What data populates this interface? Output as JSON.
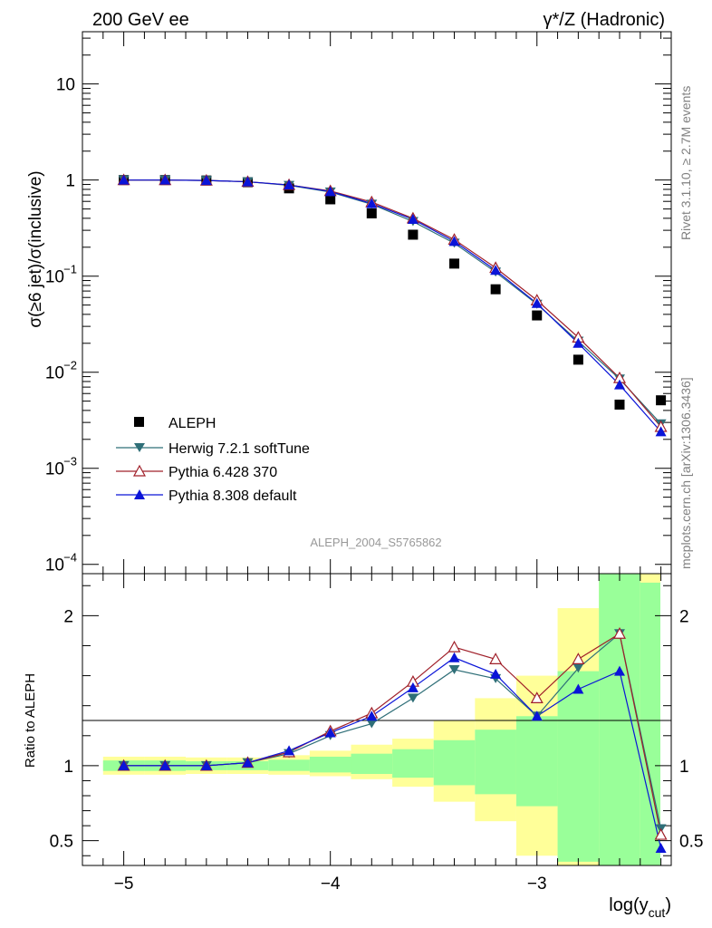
{
  "header": {
    "left_title": "200 GeV ee",
    "right_title": "γ*/Z (Hadronic)"
  },
  "side_labels": {
    "rivet": "Rivet 3.1.10, ≥ 2.7M events",
    "mcplots": "mcplots.cern.ch [arXiv:1306.3436]"
  },
  "analysis_id": "ALEPH_2004_S5765862",
  "colors": {
    "aleph": "#000000",
    "herwig": "#2f6f78",
    "pythia6": "#a0202a",
    "pythia8": "#0a14d8",
    "band_yellow": "#ffff99",
    "band_green": "#99ff99"
  },
  "chart_data": [
    {
      "type": "scatter",
      "panel": "main",
      "ylabel": "σ(≥6 jet)/σ(inclusive)",
      "yscale": "log",
      "ylim": [
        8e-05,
        35
      ],
      "xlim": [
        -5.2,
        -2.35
      ],
      "y_ticks": [
        {
          "value": 0.0001,
          "base": "10",
          "exp": "−4"
        },
        {
          "value": 0.001,
          "base": "10",
          "exp": "−3"
        },
        {
          "value": 0.01,
          "base": "10",
          "exp": "−2"
        },
        {
          "value": 0.1,
          "base": "10",
          "exp": "−1"
        },
        {
          "value": 1,
          "base": "1",
          "exp": ""
        },
        {
          "value": 10,
          "base": "10",
          "exp": ""
        }
      ],
      "x": [
        -5.0,
        -4.8,
        -4.6,
        -4.4,
        -4.2,
        -4.0,
        -3.8,
        -3.6,
        -3.4,
        -3.2,
        -3.0,
        -2.8,
        -2.6,
        -2.4
      ],
      "series": [
        {
          "name": "ALEPH",
          "key": "aleph",
          "marker": "square",
          "values": [
            1.0,
            1.0,
            0.99,
            0.95,
            0.82,
            0.63,
            0.45,
            0.27,
            0.135,
            0.073,
            0.039,
            0.0135,
            0.0046,
            0.0051
          ]
        },
        {
          "name": "Herwig 7.2.1 softTune",
          "key": "herwig",
          "marker": "triangle-down",
          "values": [
            1.0,
            1.0,
            0.99,
            0.96,
            0.88,
            0.75,
            0.56,
            0.37,
            0.22,
            0.11,
            0.051,
            0.021,
            0.0085,
            0.0029
          ]
        },
        {
          "name": "Pythia 6.428 370",
          "key": "pythia6",
          "marker": "triangle-up-open",
          "values": [
            1.0,
            1.0,
            0.99,
            0.96,
            0.89,
            0.77,
            0.59,
            0.4,
            0.24,
            0.122,
            0.056,
            0.023,
            0.0087,
            0.0027
          ]
        },
        {
          "name": "Pythia 8.308 default",
          "key": "pythia8",
          "marker": "triangle-up",
          "values": [
            1.0,
            1.0,
            0.99,
            0.96,
            0.89,
            0.76,
            0.57,
            0.39,
            0.23,
            0.115,
            0.052,
            0.02,
            0.0074,
            0.0024
          ]
        }
      ]
    },
    {
      "type": "line",
      "panel": "ratio",
      "ylabel": "Ratio to ALEPH",
      "xlabel_main": "log(y",
      "xlabel_sub": "cut",
      "xlabel_close": ")",
      "ylim": [
        0.335,
        2.28
      ],
      "xlim": [
        -5.2,
        -2.35
      ],
      "y_ticks": [
        0.5,
        1,
        2
      ],
      "y_tick_labels": [
        "0.5",
        "1",
        "2"
      ],
      "x_ticks": [
        -5,
        -4,
        -3
      ],
      "x_tick_labels": [
        "−5",
        "−4",
        "−3"
      ],
      "x": [
        -5.0,
        -4.8,
        -4.6,
        -4.4,
        -4.2,
        -4.0,
        -3.8,
        -3.6,
        -3.4,
        -3.2,
        -3.0,
        -2.8,
        -2.6,
        -2.4
      ],
      "bands": {
        "bin_edges": [
          -5.1,
          -4.9,
          -4.7,
          -4.5,
          -4.3,
          -4.1,
          -3.9,
          -3.7,
          -3.5,
          -3.3,
          -3.1,
          -2.9,
          -2.7,
          -2.5,
          -2.3
        ],
        "yellow_low": [
          0.94,
          0.94,
          0.945,
          0.945,
          0.94,
          0.93,
          0.91,
          0.86,
          0.76,
          0.63,
          0.4,
          0.335,
          0.335,
          0.335
        ],
        "yellow_high": [
          1.06,
          1.06,
          1.055,
          1.055,
          1.07,
          1.1,
          1.14,
          1.18,
          1.3,
          1.45,
          1.6,
          2.05,
          2.28,
          2.28
        ],
        "green_low": [
          0.965,
          0.965,
          0.97,
          0.97,
          0.965,
          0.955,
          0.945,
          0.92,
          0.87,
          0.81,
          0.73,
          0.36,
          0.335,
          0.335
        ],
        "green_high": [
          1.035,
          1.035,
          1.03,
          1.03,
          1.04,
          1.06,
          1.08,
          1.11,
          1.17,
          1.24,
          1.33,
          1.63,
          2.28,
          2.22
        ]
      },
      "series": [
        {
          "name": "Herwig 7.2.1 softTune",
          "key": "herwig",
          "marker": "triangle-down",
          "values": [
            1.0,
            1.0,
            1.0,
            1.02,
            1.08,
            1.2,
            1.28,
            1.45,
            1.64,
            1.58,
            1.33,
            1.65,
            1.88,
            0.58
          ]
        },
        {
          "name": "Pythia 6.428 370",
          "key": "pythia6",
          "marker": "triangle-up-open",
          "values": [
            1.0,
            1.0,
            1.0,
            1.02,
            1.09,
            1.23,
            1.35,
            1.56,
            1.79,
            1.71,
            1.45,
            1.71,
            1.88,
            0.54
          ]
        },
        {
          "name": "Pythia 8.308 default",
          "key": "pythia8",
          "marker": "triangle-up",
          "values": [
            1.0,
            1.0,
            1.0,
            1.02,
            1.1,
            1.22,
            1.33,
            1.52,
            1.72,
            1.61,
            1.33,
            1.51,
            1.63,
            0.45
          ]
        }
      ]
    }
  ]
}
